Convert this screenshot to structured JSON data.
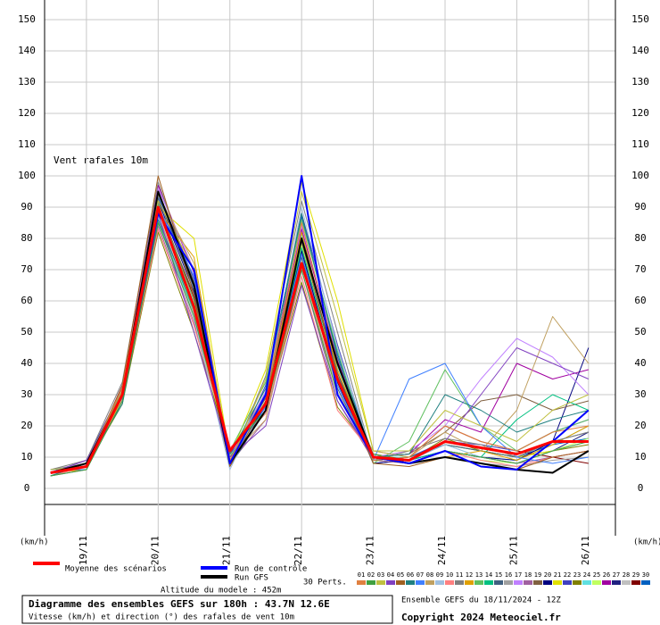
{
  "chart_data": {
    "type": "line",
    "title": "Vent rafales 10m",
    "y_unit": "(km/h)",
    "x": [
      -12,
      0,
      12,
      24,
      36,
      48,
      60,
      72,
      84,
      96,
      108,
      120,
      132,
      144,
      156,
      168
    ],
    "xlim": [
      -14,
      177
    ],
    "xticks": [
      {
        "value": 0,
        "label": "19/11"
      },
      {
        "value": 24,
        "label": "20/11"
      },
      {
        "value": 48,
        "label": "21/11"
      },
      {
        "value": 72,
        "label": "22/11"
      },
      {
        "value": 96,
        "label": "23/11"
      },
      {
        "value": 120,
        "label": "24/11"
      },
      {
        "value": 144,
        "label": "25/11"
      },
      {
        "value": 168,
        "label": "26/11"
      }
    ],
    "ylim": [
      0,
      150
    ],
    "yticks": [
      0,
      10,
      20,
      30,
      40,
      50,
      60,
      70,
      80,
      90,
      100,
      110,
      120,
      130,
      140,
      150
    ],
    "grid": true,
    "series": [
      {
        "name": "Moyenne des scénarios",
        "color": "#ff0000",
        "values": [
          5,
          7,
          30,
          90,
          58,
          12,
          27,
          72,
          35,
          10,
          9,
          15,
          13,
          11,
          15,
          15
        ]
      },
      {
        "name": "Run de contrôle",
        "color": "#0000ff",
        "values": [
          5,
          7,
          30,
          88,
          70,
          8,
          30,
          100,
          30,
          10,
          8,
          12,
          7,
          6,
          15,
          25
        ]
      },
      {
        "name": "Run GFS",
        "color": "#000000",
        "values": [
          5,
          8,
          30,
          95,
          65,
          8,
          25,
          80,
          40,
          10,
          8,
          10,
          8,
          6,
          5,
          12
        ]
      },
      {
        "name": "01",
        "color": "#e08040",
        "values": [
          5,
          8,
          32,
          95,
          65,
          9,
          30,
          85,
          40,
          9,
          10,
          20,
          15,
          12,
          18,
          20
        ]
      },
      {
        "name": "02",
        "color": "#40a040",
        "values": [
          4,
          6,
          28,
          85,
          55,
          12,
          25,
          70,
          30,
          11,
          8,
          12,
          10,
          8,
          12,
          15
        ]
      },
      {
        "name": "03",
        "color": "#c0c040",
        "values": [
          6,
          7,
          31,
          92,
          70,
          8,
          35,
          95,
          55,
          12,
          12,
          25,
          20,
          15,
          25,
          30
        ]
      },
      {
        "name": "04",
        "color": "#8040c0",
        "values": [
          5,
          9,
          29,
          88,
          50,
          10,
          20,
          65,
          28,
          10,
          9,
          15,
          30,
          45,
          40,
          35
        ]
      },
      {
        "name": "05",
        "color": "#a06020",
        "values": [
          5,
          7,
          33,
          100,
          62,
          7,
          28,
          80,
          35,
          8,
          7,
          10,
          8,
          6,
          10,
          12
        ]
      },
      {
        "name": "06",
        "color": "#208080",
        "values": [
          4,
          8,
          27,
          86,
          58,
          11,
          32,
          88,
          42,
          10,
          11,
          30,
          25,
          18,
          22,
          25
        ]
      },
      {
        "name": "07",
        "color": "#4080ff",
        "values": [
          6,
          6,
          30,
          90,
          68,
          9,
          26,
          75,
          33,
          9,
          35,
          40,
          20,
          10,
          8,
          10
        ]
      },
      {
        "name": "08",
        "color": "#c0a060",
        "values": [
          5,
          7,
          31,
          94,
          72,
          10,
          22,
          72,
          30,
          12,
          10,
          18,
          12,
          25,
          55,
          40
        ]
      },
      {
        "name": "09",
        "color": "#a0c0e0",
        "values": [
          5,
          8,
          30,
          87,
          55,
          6,
          30,
          90,
          45,
          10,
          9,
          14,
          10,
          8,
          12,
          15
        ]
      },
      {
        "name": "10",
        "color": "#ff8080",
        "values": [
          4,
          7,
          28,
          83,
          52,
          13,
          24,
          68,
          25,
          11,
          8,
          12,
          9,
          7,
          10,
          12
        ]
      },
      {
        "name": "11",
        "color": "#808080",
        "values": [
          6,
          9,
          34,
          98,
          66,
          8,
          36,
          92,
          50,
          9,
          12,
          16,
          14,
          10,
          15,
          18
        ]
      },
      {
        "name": "12",
        "color": "#e0a000",
        "values": [
          5,
          6,
          29,
          89,
          74,
          9,
          28,
          82,
          38,
          10,
          8,
          10,
          12,
          9,
          14,
          20
        ]
      },
      {
        "name": "13",
        "color": "#60c060",
        "values": [
          5,
          7,
          32,
          91,
          60,
          12,
          34,
          86,
          44,
          8,
          15,
          38,
          20,
          12,
          18,
          22
        ]
      },
      {
        "name": "14",
        "color": "#00c080",
        "values": [
          4,
          8,
          30,
          85,
          57,
          10,
          27,
          77,
          36,
          10,
          9,
          12,
          10,
          22,
          30,
          25
        ]
      },
      {
        "name": "15",
        "color": "#406080",
        "values": [
          5,
          7,
          31,
          93,
          64,
          7,
          25,
          74,
          32,
          9,
          10,
          14,
          12,
          10,
          15,
          18
        ]
      },
      {
        "name": "16",
        "color": "#a0a0a0",
        "values": [
          6,
          8,
          29,
          88,
          56,
          11,
          30,
          80,
          40,
          11,
          8,
          10,
          8,
          7,
          9,
          10
        ]
      },
      {
        "name": "17",
        "color": "#c080ff",
        "values": [
          5,
          7,
          33,
          96,
          70,
          10,
          31,
          84,
          42,
          10,
          12,
          20,
          35,
          48,
          42,
          30
        ]
      },
      {
        "name": "18",
        "color": "#a060a0",
        "values": [
          4,
          6,
          28,
          84,
          53,
          8,
          22,
          70,
          28,
          9,
          8,
          12,
          10,
          8,
          10,
          12
        ]
      },
      {
        "name": "19",
        "color": "#806040",
        "values": [
          5,
          8,
          30,
          90,
          62,
          9,
          29,
          79,
          37,
          10,
          11,
          18,
          28,
          30,
          25,
          28
        ]
      },
      {
        "name": "20",
        "color": "#000080",
        "values": [
          5,
          7,
          31,
          92,
          63,
          11,
          26,
          76,
          34,
          8,
          9,
          12,
          10,
          9,
          15,
          45
        ]
      },
      {
        "name": "21",
        "color": "#e0e000",
        "values": [
          6,
          7,
          30,
          90,
          80,
          10,
          38,
          98,
          60,
          12,
          10,
          14,
          12,
          10,
          12,
          15
        ]
      },
      {
        "name": "22",
        "color": "#4040c0",
        "values": [
          5,
          9,
          32,
          95,
          67,
          8,
          33,
          88,
          46,
          9,
          10,
          15,
          14,
          12,
          18,
          22
        ]
      },
      {
        "name": "23",
        "color": "#808000",
        "values": [
          4,
          7,
          27,
          82,
          50,
          12,
          24,
          66,
          26,
          11,
          9,
          16,
          12,
          10,
          12,
          14
        ]
      },
      {
        "name": "24",
        "color": "#60e0e0",
        "values": [
          5,
          8,
          30,
          89,
          59,
          10,
          28,
          81,
          39,
          10,
          10,
          14,
          10,
          9,
          14,
          20
        ]
      },
      {
        "name": "25",
        "color": "#c0ff60",
        "values": [
          5,
          6,
          29,
          87,
          56,
          9,
          27,
          78,
          35,
          9,
          8,
          12,
          9,
          8,
          12,
          16
        ]
      },
      {
        "name": "26",
        "color": "#a000a0",
        "values": [
          6,
          7,
          33,
          97,
          69,
          7,
          30,
          83,
          41,
          10,
          11,
          22,
          18,
          40,
          35,
          38
        ]
      },
      {
        "name": "27",
        "color": "#202080",
        "values": [
          5,
          8,
          31,
          93,
          65,
          10,
          29,
          79,
          37,
          8,
          9,
          12,
          10,
          8,
          12,
          18
        ]
      },
      {
        "name": "28",
        "color": "#c0c0c0",
        "values": [
          4,
          7,
          28,
          86,
          54,
          11,
          25,
          72,
          31,
          10,
          8,
          10,
          8,
          6,
          10,
          12
        ]
      },
      {
        "name": "29",
        "color": "#800000",
        "values": [
          5,
          7,
          30,
          91,
          61,
          9,
          27,
          76,
          34,
          9,
          10,
          20,
          15,
          12,
          10,
          8
        ]
      },
      {
        "name": "30",
        "color": "#0060c0",
        "values": [
          5,
          8,
          32,
          94,
          66,
          8,
          31,
          87,
          43,
          10,
          9,
          14,
          12,
          10,
          14,
          16
        ]
      }
    ],
    "perts_label": "30 Perts.",
    "altitude": "Altitude du modele : 452m",
    "caption_title": "Diagramme des ensembles GEFS sur 180h : 43.7N 12.6E",
    "caption_subtitle": "Vitesse (km/h) et direction (°) des rafales de vent 10m",
    "run_info": "Ensemble GEFS du 18/11/2024 - 12Z",
    "copyright": "Copyright 2024 Meteociel.fr"
  }
}
